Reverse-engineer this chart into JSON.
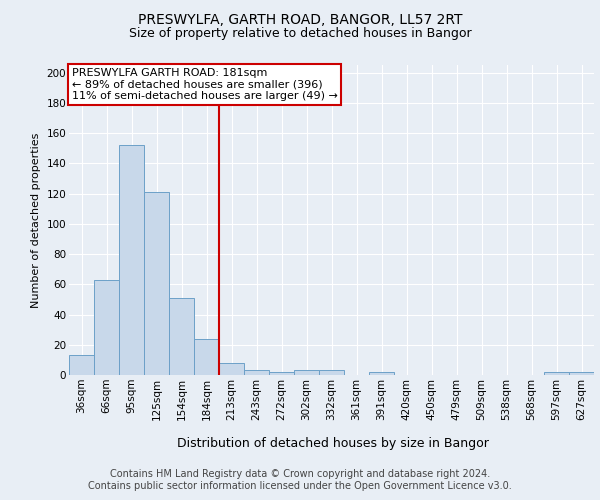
{
  "title1": "PRESWYLFA, GARTH ROAD, BANGOR, LL57 2RT",
  "title2": "Size of property relative to detached houses in Bangor",
  "xlabel": "Distribution of detached houses by size in Bangor",
  "ylabel": "Number of detached properties",
  "categories": [
    "36sqm",
    "66sqm",
    "95sqm",
    "125sqm",
    "154sqm",
    "184sqm",
    "213sqm",
    "243sqm",
    "272sqm",
    "302sqm",
    "332sqm",
    "361sqm",
    "391sqm",
    "420sqm",
    "450sqm",
    "479sqm",
    "509sqm",
    "538sqm",
    "568sqm",
    "597sqm",
    "627sqm"
  ],
  "values": [
    13,
    63,
    152,
    121,
    51,
    24,
    8,
    3,
    2,
    3,
    3,
    0,
    2,
    0,
    0,
    0,
    0,
    0,
    0,
    2,
    2
  ],
  "bar_color": "#c8d8ea",
  "bar_edge_color": "#6ca0c8",
  "red_line_x": 5.5,
  "annotation_text": "PRESWYLFA GARTH ROAD: 181sqm\n← 89% of detached houses are smaller (396)\n11% of semi-detached houses are larger (49) →",
  "annotation_box_color": "#ffffff",
  "annotation_box_edge_color": "#cc0000",
  "red_line_color": "#cc0000",
  "ylim": [
    0,
    205
  ],
  "yticks": [
    0,
    20,
    40,
    60,
    80,
    100,
    120,
    140,
    160,
    180,
    200
  ],
  "footer1": "Contains HM Land Registry data © Crown copyright and database right 2024.",
  "footer2": "Contains public sector information licensed under the Open Government Licence v3.0.",
  "background_color": "#e8eef5",
  "plot_background_color": "#e8eef5",
  "grid_color": "#ffffff",
  "title1_fontsize": 10,
  "title2_fontsize": 9,
  "xlabel_fontsize": 9,
  "ylabel_fontsize": 8,
  "tick_fontsize": 7.5,
  "footer_fontsize": 7,
  "ann_fontsize": 8
}
